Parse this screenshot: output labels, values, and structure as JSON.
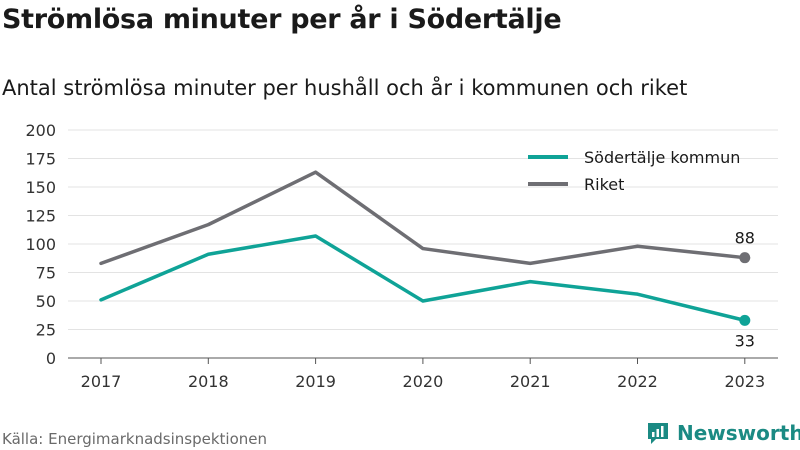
{
  "chart_data": {
    "type": "line",
    "title": "Strömlösa minuter per år i Södertälje",
    "subtitle": "Antal strömlösa minuter per hushåll och år i kommunen och riket",
    "categories": [
      "2017",
      "2018",
      "2019",
      "2020",
      "2021",
      "2022",
      "2023"
    ],
    "series": [
      {
        "name": "Södertälje kommun",
        "color": "#0fa397",
        "values": [
          51,
          91,
          107,
          50,
          67,
          56,
          33
        ],
        "end_label": "33"
      },
      {
        "name": "Riket",
        "color": "#6e6e73",
        "values": [
          83,
          117,
          163,
          96,
          83,
          98,
          88
        ],
        "end_label": "88"
      }
    ],
    "ylim": [
      0,
      200
    ],
    "yticks": [
      "0",
      "25",
      "50",
      "75",
      "100",
      "125",
      "150",
      "175",
      "200"
    ],
    "grid": true,
    "legend_position": "top-right"
  },
  "footer": {
    "source": "Källa: Energimarknadsinspektionen",
    "brand": "Newsworthy",
    "brand_icon": "newsworthy-logo-icon"
  }
}
